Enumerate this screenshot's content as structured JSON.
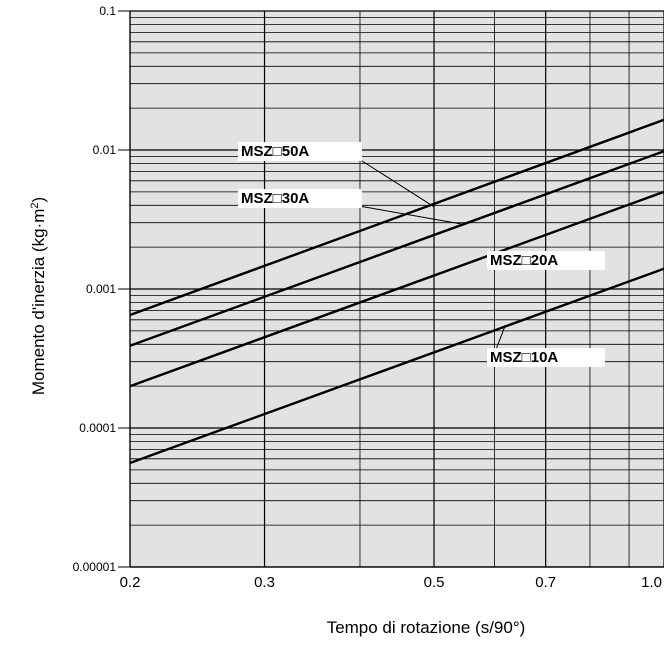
{
  "chart_data": {
    "type": "line",
    "title": "",
    "xlabel": "Tempo di rotazione (s/90°)",
    "ylabel": "Momento d'inerzia (kg·m²)",
    "x_scale": "log",
    "y_scale": "log",
    "xlim": [
      0.2,
      1.0
    ],
    "ylim": [
      1e-05,
      0.1
    ],
    "grid": true,
    "x_ticks": [
      {
        "value": 0.2,
        "label": "0.2"
      },
      {
        "value": 0.3,
        "label": "0.3"
      },
      {
        "value": 0.5,
        "label": "0.5"
      },
      {
        "value": 0.7,
        "label": "0.7"
      },
      {
        "value": 1.0,
        "label": "1.0"
      }
    ],
    "y_ticks": [
      {
        "value": 0.1,
        "label": "0.1"
      },
      {
        "value": 0.01,
        "label": "0.01"
      },
      {
        "value": 0.001,
        "label": "0.001"
      },
      {
        "value": 0.0001,
        "label": "0.0001"
      },
      {
        "value": 1e-05,
        "label": "0.00001"
      }
    ],
    "series": [
      {
        "name": "MSZ□50A",
        "x": [
          0.2,
          1.0
        ],
        "y": [
          0.00065,
          0.0165
        ],
        "label_at": {
          "x": 0.5,
          "y": 0.0039
        }
      },
      {
        "name": "MSZ□30A",
        "x": [
          0.2,
          1.0
        ],
        "y": [
          0.00039,
          0.0098
        ],
        "label_at": {
          "x": 0.55,
          "y": 0.0029
        }
      },
      {
        "name": "MSZ□20A",
        "x": [
          0.2,
          1.0
        ],
        "y": [
          0.0002,
          0.005
        ],
        "label_at": {
          "x": 0.6,
          "y": 0.0019
        }
      },
      {
        "name": "MSZ□10A",
        "x": [
          0.2,
          1.0
        ],
        "y": [
          5.6e-05,
          0.0014
        ],
        "label_at": {
          "x": 0.62,
          "y": 0.00055
        }
      }
    ]
  }
}
